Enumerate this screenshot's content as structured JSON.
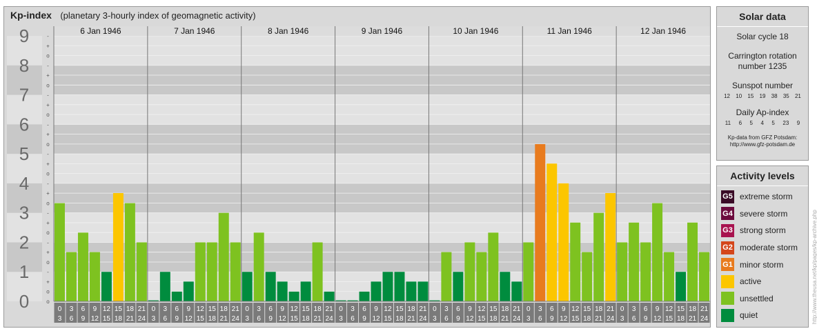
{
  "header": {
    "title": "Kp-index",
    "subtitle": "(planetary 3-hourly index of geomagnetic activity)"
  },
  "chart_data": {
    "type": "bar",
    "title": "Kp-index",
    "subtitle": "(planetary 3-hourly index of geomagnetic activity)",
    "ylim": [
      0,
      9
    ],
    "y_ticks": [
      "0",
      "1",
      "2",
      "3",
      "4",
      "5",
      "6",
      "7",
      "8",
      "9"
    ],
    "y_subticks": [
      "-",
      "o",
      "+"
    ],
    "days": [
      {
        "date": "6 Jan 1946",
        "values": [
          3.33,
          1.67,
          2.33,
          1.67,
          1.0,
          3.67,
          3.33,
          2.0
        ]
      },
      {
        "date": "7 Jan 1946",
        "values": [
          0.0,
          1.0,
          0.33,
          0.67,
          2.0,
          2.0,
          3.0,
          2.0
        ]
      },
      {
        "date": "8 Jan 1946",
        "values": [
          1.0,
          2.33,
          1.0,
          0.67,
          0.33,
          0.67,
          2.0,
          0.33
        ]
      },
      {
        "date": "9 Jan 1946",
        "values": [
          0.0,
          0.0,
          0.33,
          0.67,
          1.0,
          1.0,
          0.67,
          0.67
        ]
      },
      {
        "date": "10 Jan 1946",
        "values": [
          0.0,
          1.67,
          1.0,
          2.0,
          1.67,
          2.33,
          1.0,
          0.67
        ]
      },
      {
        "date": "11 Jan 1946",
        "values": [
          2.0,
          5.33,
          4.67,
          4.0,
          2.67,
          1.67,
          3.0,
          3.67
        ]
      },
      {
        "date": "12 Jan 1946",
        "values": [
          2.0,
          2.67,
          2.0,
          3.33,
          1.67,
          1.0,
          2.67,
          1.67
        ]
      }
    ],
    "hour_labels": [
      [
        "0",
        "3"
      ],
      [
        "3",
        "6"
      ],
      [
        "6",
        "9"
      ],
      [
        "9",
        "12"
      ],
      [
        "12",
        "15"
      ],
      [
        "15",
        "18"
      ],
      [
        "18",
        "21"
      ],
      [
        "21",
        "24"
      ]
    ],
    "colors": {
      "quiet": "#008c3e",
      "unsettled": "#7ec220",
      "active": "#fcc600",
      "minor_storm": "#e87b1e",
      "moderate_storm": "#d4461a",
      "strong_storm": "#a8134f",
      "severe_storm": "#6c0a3d",
      "extreme_storm": "#3a0a26"
    }
  },
  "solar": {
    "title": "Solar data",
    "cycle": "Solar cycle 18",
    "carrington_line1": "Carrington rotation",
    "carrington_line2": "number 1235",
    "sunspot_title": "Sunspot number",
    "sunspot_values": [
      "12",
      "10",
      "15",
      "19",
      "38",
      "35",
      "21"
    ],
    "ap_title": "Daily Ap-index",
    "ap_values": [
      "11",
      "6",
      "5",
      "4",
      "5",
      "23",
      "9"
    ],
    "source_line1": "Kp-data from GFZ Potsdam:",
    "source_line2": "http://www.gfz-potsdam.de"
  },
  "activity": {
    "title": "Activity levels",
    "levels": [
      {
        "code": "G5",
        "label": "extreme storm",
        "color": "#3a0a26"
      },
      {
        "code": "G4",
        "label": "severe storm",
        "color": "#6c0a3d"
      },
      {
        "code": "G3",
        "label": "strong storm",
        "color": "#a8134f"
      },
      {
        "code": "G2",
        "label": "moderate storm",
        "color": "#d4461a"
      },
      {
        "code": "G1",
        "label": "minor storm",
        "color": "#e87b1e"
      },
      {
        "code": "",
        "label": "active",
        "color": "#fcc600"
      },
      {
        "code": "",
        "label": "unsettled",
        "color": "#7ec220"
      },
      {
        "code": "",
        "label": "quiet",
        "color": "#008c3e"
      }
    ]
  },
  "credit": "http://www.theusa.net/kp/pages/kp-archive.php"
}
